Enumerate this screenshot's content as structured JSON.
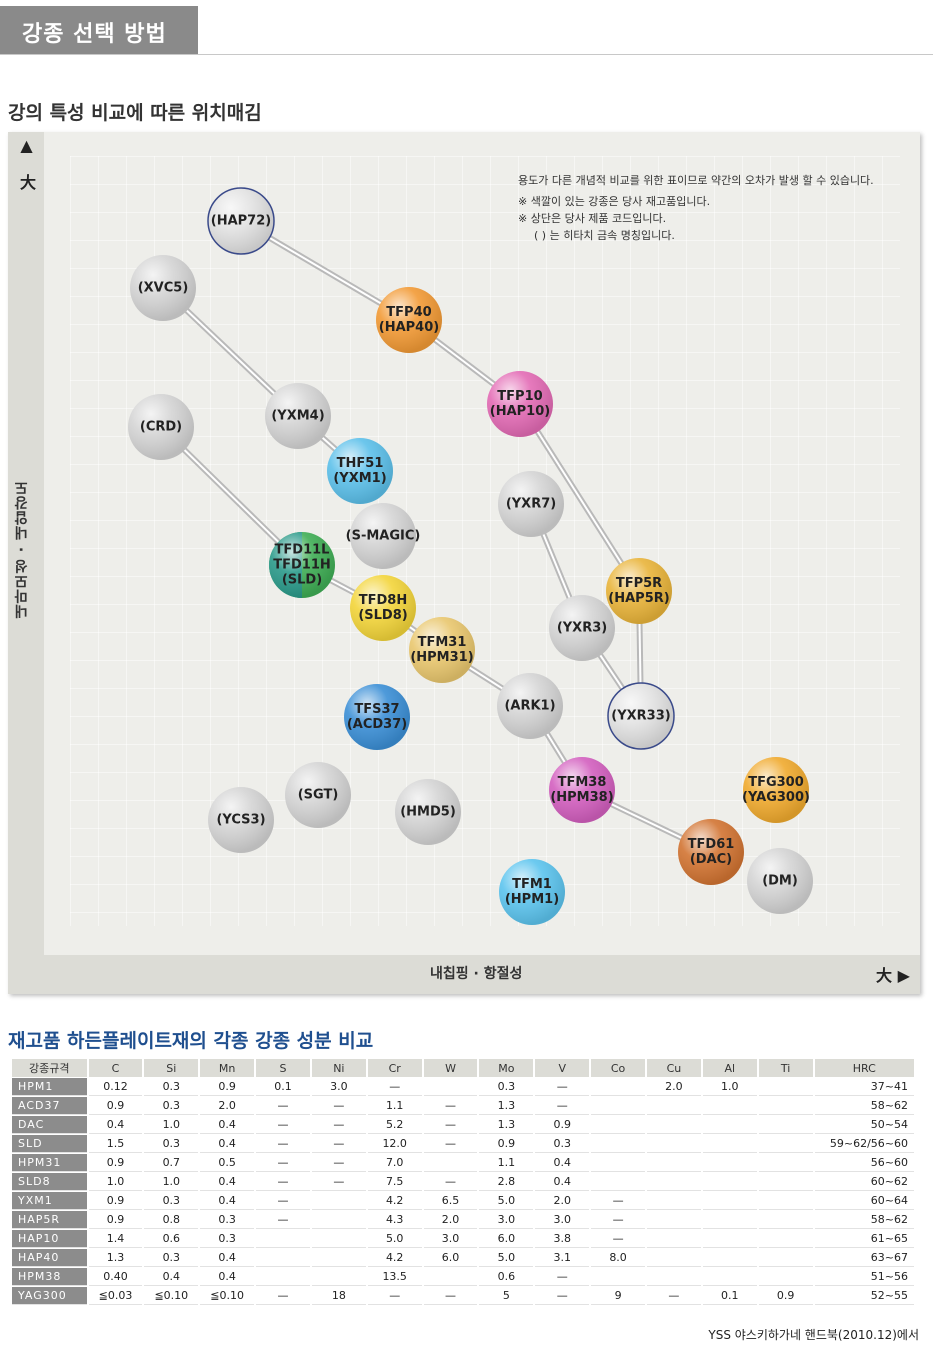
{
  "page_title": "강종 선택 방법",
  "chart_section_title": "강의 특성 비교에 따른 위치매김",
  "table_section_title": "재고품 하든플레이트재의 각종 강종 성분 비교",
  "source_note": "YSS 야스키하가네 핸드북(2010.12)에서",
  "chart": {
    "y_arrow": "▲ 大",
    "y_label": "내마모성 · 내압강도",
    "x_label": "내칩핑 · 항절성",
    "x_arrow": "大 ▶",
    "notes": [
      "용도가 다른 개념적 비교를 위한 표이므로 약간의 오차가 발생 할 수 있습니다.",
      "※ 색깔이 있는 강종은 당사 재고품입니다.",
      "※ 상단은 당사 제품 코드입니다.",
      "( ) 는 히타치 금속 명칭입니다."
    ],
    "balls": [
      {
        "id": "hap72",
        "lines": [
          "(HAP72)"
        ],
        "color": "#e2e2e2",
        "ring": "#3a4a8a"
      },
      {
        "id": "xvc5",
        "lines": [
          "(XVC5)"
        ],
        "color": "#d4d4d4"
      },
      {
        "id": "tfp40",
        "lines": [
          "TFP40",
          "(HAP40)"
        ],
        "color": "#f29a35"
      },
      {
        "id": "tfp10",
        "lines": [
          "TFP10",
          "(HAP10)"
        ],
        "color": "#e36bb5"
      },
      {
        "id": "crd",
        "lines": [
          "(CRD)"
        ],
        "color": "#d4d4d4"
      },
      {
        "id": "yxm4",
        "lines": [
          "(YXM4)"
        ],
        "color": "#d4d4d4"
      },
      {
        "id": "thf51",
        "lines": [
          "THF51",
          "(YXM1)"
        ],
        "color": "#5cc0ea"
      },
      {
        "id": "yxr7",
        "lines": [
          "(YXR7)"
        ],
        "color": "#d4d4d4"
      },
      {
        "id": "smagic",
        "lines": [
          "(S-MAGIC)"
        ],
        "color": "#d4d4d4"
      },
      {
        "id": "tfd11",
        "lines": [
          "TFD11L",
          "TFD11H",
          "(SLD)"
        ],
        "color": "#3fae55",
        "split": "#2a9a8a"
      },
      {
        "id": "tfp5r",
        "lines": [
          "TFP5R",
          "(HAP5R)"
        ],
        "color": "#e9b43a"
      },
      {
        "id": "tfd8h",
        "lines": [
          "TFD8H",
          "(SLD8)"
        ],
        "color": "#f3d53a"
      },
      {
        "id": "tfm31",
        "lines": [
          "TFM31",
          "(HPM31)"
        ],
        "color": "#e9c76e"
      },
      {
        "id": "yxr3",
        "lines": [
          "(YXR3)"
        ],
        "color": "#d4d4d4"
      },
      {
        "id": "ark1",
        "lines": [
          "(ARK1)"
        ],
        "color": "#d4d4d4"
      },
      {
        "id": "tfs37",
        "lines": [
          "TFS37",
          "(ACD37)"
        ],
        "color": "#3b8fd6"
      },
      {
        "id": "yxr33",
        "lines": [
          "(YXR33)"
        ],
        "color": "#e2e2e2",
        "ring": "#3a4a8a"
      },
      {
        "id": "tfm38",
        "lines": [
          "TFM38",
          "(HPM38)"
        ],
        "color": "#d35fbf"
      },
      {
        "id": "tfg300",
        "lines": [
          "TFG300",
          "(YAG300)"
        ],
        "color": "#f0aa2e"
      },
      {
        "id": "sgt",
        "lines": [
          "(SGT)"
        ],
        "color": "#d4d4d4"
      },
      {
        "id": "hmd5",
        "lines": [
          "(HMD5)"
        ],
        "color": "#d4d4d4"
      },
      {
        "id": "ycs3",
        "lines": [
          "(YCS3)"
        ],
        "color": "#d4d4d4"
      },
      {
        "id": "tfd61",
        "lines": [
          "TFD61",
          "(DAC)"
        ],
        "color": "#d27432"
      },
      {
        "id": "dm",
        "lines": [
          "(DM)"
        ],
        "color": "#d4d4d4"
      },
      {
        "id": "tfm1",
        "lines": [
          "TFM1",
          "(HPM1)"
        ],
        "color": "#5cc4ee"
      }
    ],
    "links": [
      [
        "hap72",
        "tfp40"
      ],
      [
        "tfp40",
        "tfp10"
      ],
      [
        "tfp10",
        "tfp5r"
      ],
      [
        "tfp5r",
        "yxr33"
      ],
      [
        "yxr7",
        "yxr3"
      ],
      [
        "yxr3",
        "yxr33"
      ],
      [
        "xvc5",
        "yxm4"
      ],
      [
        "yxm4",
        "thf51"
      ],
      [
        "crd",
        "tfd11"
      ],
      [
        "tfd11",
        "tfd8h"
      ],
      [
        "tfd8h",
        "tfm31"
      ],
      [
        "tfm31",
        "ark1"
      ],
      [
        "ark1",
        "tfm38"
      ],
      [
        "tfm38",
        "tfd61"
      ]
    ]
  },
  "table": {
    "headers": [
      "강종규격",
      "C",
      "Si",
      "Mn",
      "S",
      "Ni",
      "Cr",
      "W",
      "Mo",
      "V",
      "Co",
      "Cu",
      "Al",
      "Ti",
      "HRC"
    ],
    "rows": [
      [
        "HPM1",
        "0.12",
        "0.3",
        "0.9",
        "0.1",
        "3.0",
        "—",
        "",
        "0.3",
        "—",
        "",
        "2.0",
        "1.0",
        "",
        "37~41"
      ],
      [
        "ACD37",
        "0.9",
        "0.3",
        "2.0",
        "—",
        "—",
        "1.1",
        "—",
        "1.3",
        "—",
        "",
        "",
        "",
        "",
        "58~62"
      ],
      [
        "DAC",
        "0.4",
        "1.0",
        "0.4",
        "—",
        "—",
        "5.2",
        "—",
        "1.3",
        "0.9",
        "",
        "",
        "",
        "",
        "50~54"
      ],
      [
        "SLD",
        "1.5",
        "0.3",
        "0.4",
        "—",
        "—",
        "12.0",
        "—",
        "0.9",
        "0.3",
        "",
        "",
        "",
        "",
        "59~62/56~60"
      ],
      [
        "HPM31",
        "0.9",
        "0.7",
        "0.5",
        "—",
        "—",
        "7.0",
        "",
        "1.1",
        "0.4",
        "",
        "",
        "",
        "",
        "56~60"
      ],
      [
        "SLD8",
        "1.0",
        "1.0",
        "0.4",
        "—",
        "—",
        "7.5",
        "—",
        "2.8",
        "0.4",
        "",
        "",
        "",
        "",
        "60~62"
      ],
      [
        "YXM1",
        "0.9",
        "0.3",
        "0.4",
        "—",
        "",
        "4.2",
        "6.5",
        "5.0",
        "2.0",
        "—",
        "",
        "",
        "",
        "60~64"
      ],
      [
        "HAP5R",
        "0.9",
        "0.8",
        "0.3",
        "—",
        "",
        "4.3",
        "2.0",
        "3.0",
        "3.0",
        "—",
        "",
        "",
        "",
        "58~62"
      ],
      [
        "HAP10",
        "1.4",
        "0.6",
        "0.3",
        "",
        "",
        "5.0",
        "3.0",
        "6.0",
        "3.8",
        "—",
        "",
        "",
        "",
        "61~65"
      ],
      [
        "HAP40",
        "1.3",
        "0.3",
        "0.4",
        "",
        "",
        "4.2",
        "6.0",
        "5.0",
        "3.1",
        "8.0",
        "",
        "",
        "",
        "63~67"
      ],
      [
        "HPM38",
        "0.40",
        "0.4",
        "0.4",
        "",
        "",
        "13.5",
        "",
        "0.6",
        "—",
        "",
        "",
        "",
        "",
        "51~56"
      ],
      [
        "YAG300",
        "≦0.03",
        "≦0.10",
        "≦0.10",
        "—",
        "18",
        "—",
        "—",
        "5",
        "—",
        "9",
        "—",
        "0.1",
        "0.9",
        "52~55"
      ]
    ]
  }
}
